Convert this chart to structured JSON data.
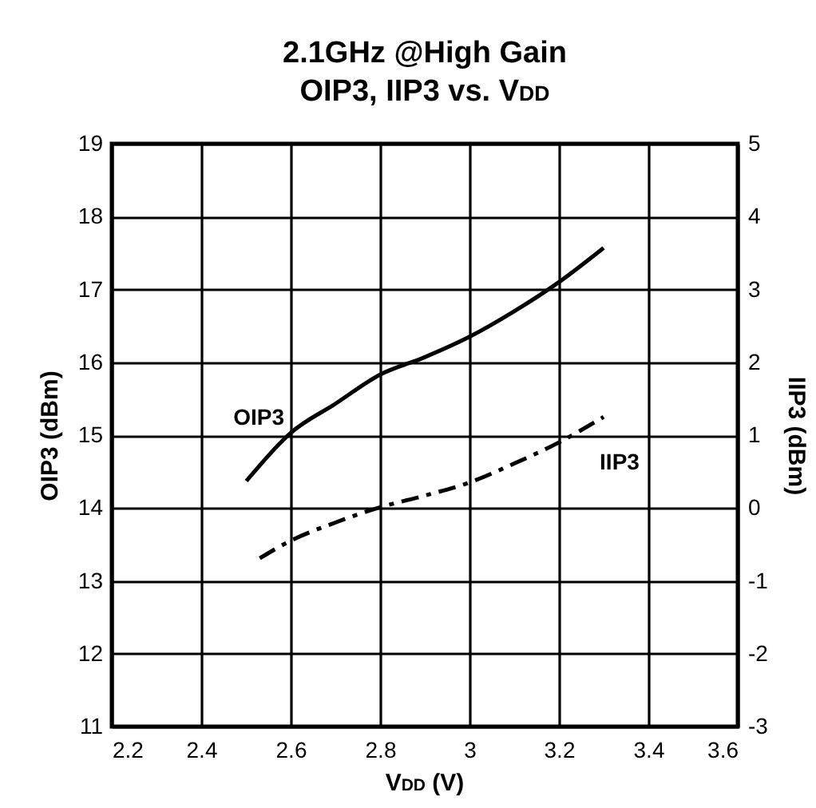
{
  "chart_data": {
    "type": "line",
    "title": "2.1GHz @High Gain\nOIP3, IIP3 vs. V$_{DD}$",
    "xlabel": "V$_{DD}$ (V)",
    "ylabel": "OIP3 (dBm)",
    "y2label": "IIP3 (dBm)",
    "series": [
      {
        "name": "OIP3",
        "color": "#000000",
        "line_style": "solid",
        "x": [
          2.501,
          2.6,
          2.7,
          2.8,
          2.9,
          3.0,
          3.1,
          3.2,
          3.3
        ],
        "values": [
          14.37,
          15.03,
          15.43,
          15.83,
          16.07,
          16.35,
          16.7,
          17.1,
          17.57
        ]
      },
      {
        "name": "IIP3",
        "color": "#000000",
        "line_style": "dashed",
        "axis": "y2",
        "x": [
          2.531,
          2.6,
          2.7,
          2.8,
          2.9,
          3.0,
          3.1,
          3.2,
          3.3
        ],
        "values": [
          -0.69,
          -0.45,
          -0.2,
          0.01,
          0.17,
          0.35,
          0.61,
          0.9,
          1.25
        ]
      }
    ],
    "xlim": [
      2.2,
      3.6
    ],
    "xticks": [
      2.2,
      2.4,
      2.6,
      2.8,
      3,
      3.2,
      3.4,
      3.6
    ],
    "ylim": [
      11,
      19
    ],
    "yticks": [
      11,
      12,
      13,
      14,
      15,
      16,
      17,
      18,
      19
    ],
    "y2lim": [
      -3,
      5
    ],
    "y2ticks": [
      -3,
      -2,
      -1,
      0,
      1,
      2,
      3,
      4,
      5
    ],
    "grid": true,
    "marker": "none"
  }
}
